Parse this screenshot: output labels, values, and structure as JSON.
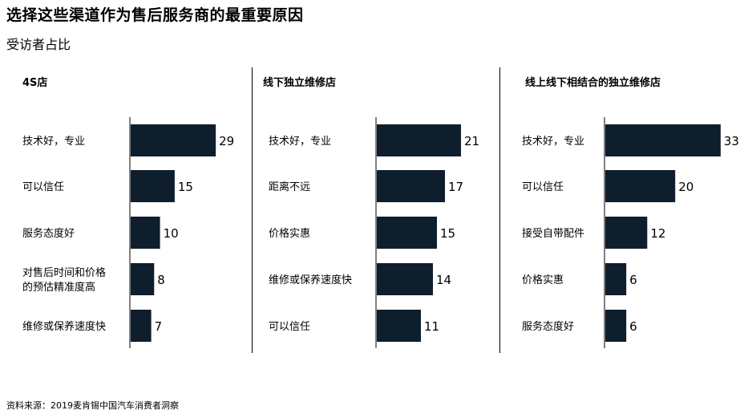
{
  "title": "选择这些渠道作为售后服务商的最重要原因",
  "subtitle": "受访者占比",
  "source": "资料来源：2019麦肯锡中国汽车消费者洞察",
  "colors": {
    "bar": "#0f1e2d",
    "axis": "#000000"
  },
  "chart_data": [
    {
      "type": "bar",
      "orientation": "horizontal",
      "title": "4S店",
      "categories": [
        "技术好，专业",
        "可以信任",
        "服务态度好",
        "对售后时间和价格的预估精准度高",
        "维修或保养速度快"
      ],
      "category_lines": [
        [
          "技术好，专业"
        ],
        [
          "可以信任"
        ],
        [
          "服务态度好"
        ],
        [
          "对售后时间和价格",
          "的预估精准度高"
        ],
        [
          "维修或保养速度快"
        ]
      ],
      "values": [
        29,
        15,
        10,
        8,
        7
      ],
      "xlim": [
        0,
        33
      ]
    },
    {
      "type": "bar",
      "orientation": "horizontal",
      "title": "线下独立维修店",
      "categories": [
        "技术好，专业",
        "距离不远",
        "价格实惠",
        "维修或保养速度快",
        "可以信任"
      ],
      "category_lines": [
        [
          "技术好，专业"
        ],
        [
          "距离不远"
        ],
        [
          "价格实惠"
        ],
        [
          "维修或保养速度快"
        ],
        [
          "可以信任"
        ]
      ],
      "values": [
        21,
        17,
        15,
        14,
        11
      ],
      "xlim": [
        0,
        33
      ]
    },
    {
      "type": "bar",
      "orientation": "horizontal",
      "title": "线上线下相结合的独立维修店",
      "categories": [
        "技术好，专业",
        "可以信任",
        "接受自带配件",
        "价格实惠",
        "服务态度好"
      ],
      "category_lines": [
        [
          "技术好，专业"
        ],
        [
          "可以信任"
        ],
        [
          "接受自带配件"
        ],
        [
          "价格实惠"
        ],
        [
          "服务态度好"
        ]
      ],
      "values": [
        33,
        20,
        12,
        6,
        6
      ],
      "xlim": [
        0,
        33
      ]
    }
  ]
}
